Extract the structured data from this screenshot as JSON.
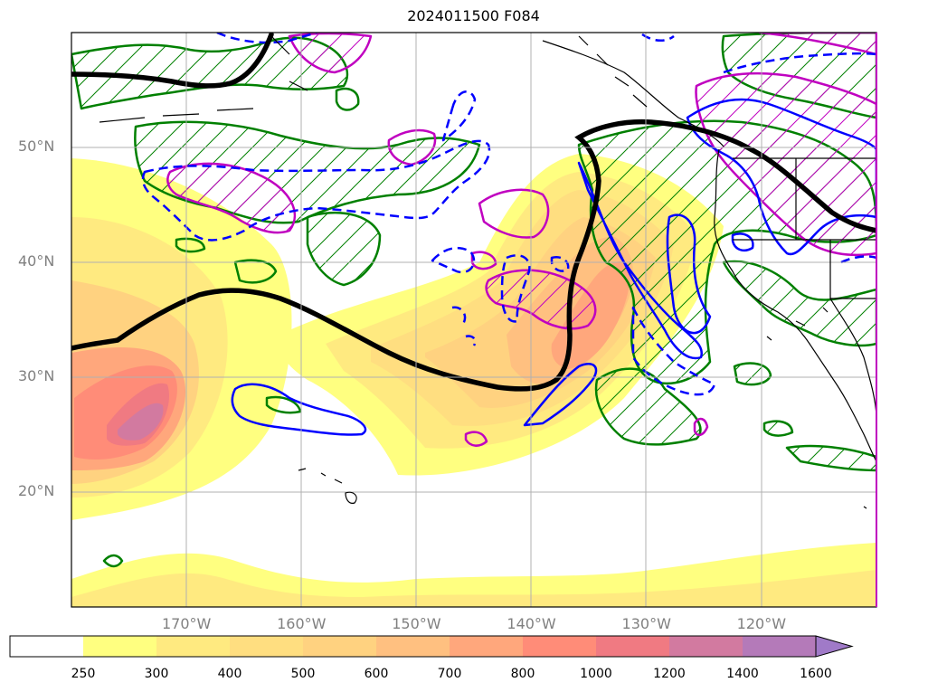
{
  "title": "2024011500 F084",
  "map": {
    "extent": {
      "lon_min": -180,
      "lon_max": -110,
      "lat_min": 10,
      "lat_max": 60
    },
    "lon_labels": [
      {
        "lon": -170,
        "label": "170°W"
      },
      {
        "lon": -160,
        "label": "160°W"
      },
      {
        "lon": -150,
        "label": "150°W"
      },
      {
        "lon": -140,
        "label": "140°W"
      },
      {
        "lon": -130,
        "label": "130°W"
      },
      {
        "lon": -120,
        "label": "120°W"
      }
    ],
    "lat_labels": [
      {
        "lat": 50,
        "label": "50°N"
      },
      {
        "lat": 40,
        "label": "40°N"
      },
      {
        "lat": 30,
        "label": "30°N"
      },
      {
        "lat": 20,
        "label": "20°N"
      }
    ],
    "grid": true
  },
  "colorbar": {
    "ticks": [
      "250",
      "300",
      "400",
      "500",
      "600",
      "700",
      "800",
      "1000",
      "1200",
      "1400",
      "1600"
    ],
    "colors": [
      "#ffffff",
      "#ffff80",
      "#ffea80",
      "#ffde80",
      "#ffd280",
      "#ffc080",
      "#ffa77c",
      "#ff8c78",
      "#f07a82",
      "#d27aa0",
      "#b47ab9",
      "#a07ac8"
    ],
    "extend": "max"
  },
  "colors": {
    "black_contour": "#000000",
    "green_contour": "#008000",
    "blue_contour": "#0000ff",
    "magenta_contour": "#c000c0"
  }
}
